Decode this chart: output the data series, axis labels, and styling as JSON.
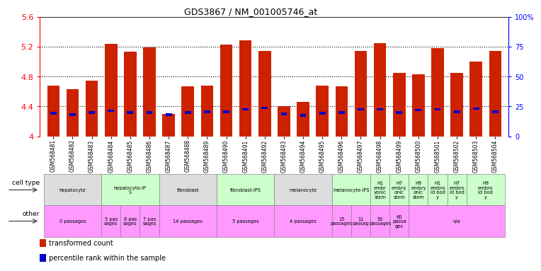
{
  "title": "GDS3867 / NM_001005746_at",
  "samples": [
    "GSM568481",
    "GSM568482",
    "GSM568483",
    "GSM568484",
    "GSM568485",
    "GSM568486",
    "GSM568487",
    "GSM568488",
    "GSM568489",
    "GSM568490",
    "GSM568491",
    "GSM568492",
    "GSM568493",
    "GSM568494",
    "GSM568495",
    "GSM568496",
    "GSM568497",
    "GSM568498",
    "GSM568499",
    "GSM568500",
    "GSM568501",
    "GSM568502",
    "GSM568503",
    "GSM568504"
  ],
  "red_values": [
    4.68,
    4.63,
    4.74,
    5.24,
    5.13,
    5.19,
    4.3,
    4.67,
    4.68,
    5.23,
    5.28,
    5.14,
    4.4,
    4.46,
    4.68,
    4.67,
    5.14,
    5.25,
    4.85,
    4.83,
    5.18,
    4.85,
    5.0,
    5.14
  ],
  "blue_values": [
    4.31,
    4.29,
    4.32,
    4.34,
    4.32,
    4.32,
    4.29,
    4.32,
    4.33,
    4.33,
    4.36,
    4.38,
    4.3,
    4.28,
    4.31,
    4.32,
    4.36,
    4.36,
    4.32,
    4.35,
    4.36,
    4.33,
    4.37,
    4.33
  ],
  "ylim": [
    4.0,
    5.6
  ],
  "yticks": [
    4.0,
    4.4,
    4.8,
    5.2,
    5.6
  ],
  "ytick_labels_left": [
    "4",
    "4.4",
    "4.8",
    "5.2",
    "5.6"
  ],
  "right_yticks": [
    0,
    25,
    50,
    75,
    100
  ],
  "right_ytick_labels": [
    "0",
    "25",
    "50",
    "75",
    "100%"
  ],
  "bar_color": "#CC2200",
  "blue_color": "#0000CC",
  "background_color": "#FFFFFF",
  "bar_width": 0.65,
  "cell_type_groups": [
    {
      "label": "hepatocyte",
      "start": 0,
      "end": 2,
      "color": "#DDDDDD"
    },
    {
      "label": "hepatocyte-iP\nS",
      "start": 3,
      "end": 5,
      "color": "#CCFFCC"
    },
    {
      "label": "fibroblast",
      "start": 6,
      "end": 8,
      "color": "#DDDDDD"
    },
    {
      "label": "fibroblast-IPS",
      "start": 9,
      "end": 11,
      "color": "#CCFFCC"
    },
    {
      "label": "melanocyte",
      "start": 12,
      "end": 14,
      "color": "#DDDDDD"
    },
    {
      "label": "melanocyte-IPS",
      "start": 15,
      "end": 16,
      "color": "#CCFFCC"
    },
    {
      "label": "H1\nembr\nyonic\nstem",
      "start": 17,
      "end": 17,
      "color": "#CCFFCC"
    },
    {
      "label": "H7\nembry\nonic\nstem",
      "start": 18,
      "end": 18,
      "color": "#CCFFCC"
    },
    {
      "label": "H9\nembry\nonic\nstem",
      "start": 19,
      "end": 19,
      "color": "#CCFFCC"
    },
    {
      "label": "H1\nembro\nid bod\ny",
      "start": 20,
      "end": 20,
      "color": "#CCFFCC"
    },
    {
      "label": "H7\nembro\nid bod\ny",
      "start": 21,
      "end": 21,
      "color": "#CCFFCC"
    },
    {
      "label": "H9\nembro\nid bod\ny",
      "start": 22,
      "end": 23,
      "color": "#CCFFCC"
    }
  ],
  "other_groups": [
    {
      "label": "0 passages",
      "start": 0,
      "end": 2,
      "color": "#FF99FF"
    },
    {
      "label": "5 pas\nsages",
      "start": 3,
      "end": 3,
      "color": "#FF99FF"
    },
    {
      "label": "6 pas\nsages",
      "start": 4,
      "end": 4,
      "color": "#FF99FF"
    },
    {
      "label": "7 pas\nsages",
      "start": 5,
      "end": 5,
      "color": "#FF99FF"
    },
    {
      "label": "14 passages",
      "start": 6,
      "end": 8,
      "color": "#FF99FF"
    },
    {
      "label": "5 passages",
      "start": 9,
      "end": 11,
      "color": "#FF99FF"
    },
    {
      "label": "4 passages",
      "start": 12,
      "end": 14,
      "color": "#FF99FF"
    },
    {
      "label": "15\npassages",
      "start": 15,
      "end": 15,
      "color": "#FF99FF"
    },
    {
      "label": "11\npassag",
      "start": 16,
      "end": 16,
      "color": "#FF99FF"
    },
    {
      "label": "50\npassages",
      "start": 17,
      "end": 17,
      "color": "#FF99FF"
    },
    {
      "label": "60\npassa\nges",
      "start": 18,
      "end": 18,
      "color": "#FF99FF"
    },
    {
      "label": "n/a",
      "start": 19,
      "end": 23,
      "color": "#FF99FF"
    }
  ],
  "legend_items": [
    {
      "color": "#CC2200",
      "label": "transformed count"
    },
    {
      "color": "#0000CC",
      "label": "percentile rank within the sample"
    }
  ]
}
